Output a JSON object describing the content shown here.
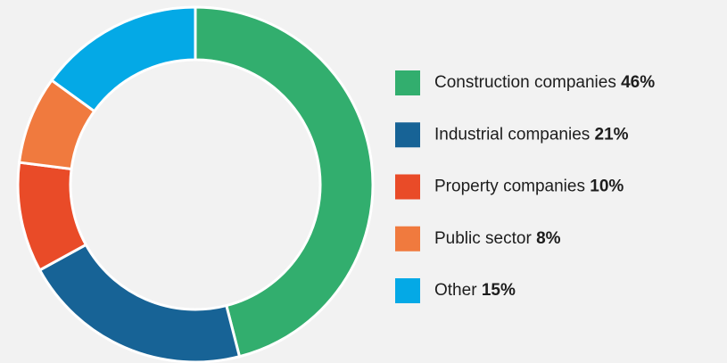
{
  "chart_data": {
    "type": "donut",
    "categories": [
      "Construction companies",
      "Industrial companies",
      "Property companies",
      "Public sector",
      "Other"
    ],
    "values": [
      46,
      21,
      10,
      8,
      15
    ],
    "value_labels": [
      "46%",
      "21%",
      "10%",
      "8%",
      "15%"
    ],
    "colors": [
      "#32ae6e",
      "#176396",
      "#e94b28",
      "#f07a3e",
      "#04a9e6"
    ],
    "legend": "right"
  }
}
